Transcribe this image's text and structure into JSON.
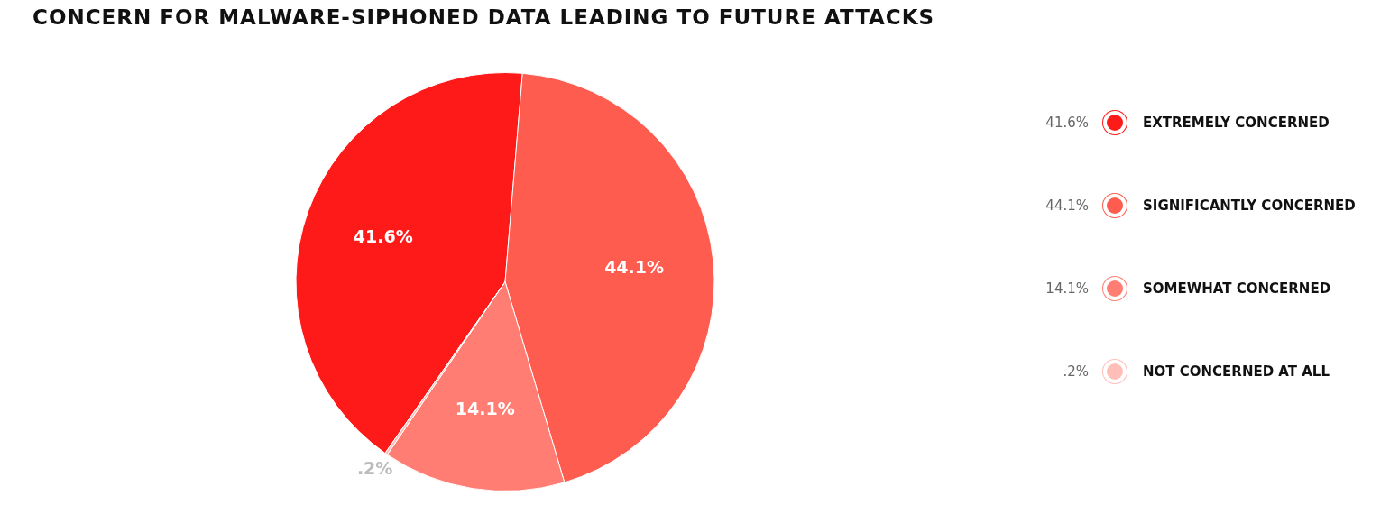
{
  "chart_data": {
    "type": "pie",
    "title": "CONCERN FOR MALWARE-SIPHONED DATA LEADING TO FUTURE ATTACKS",
    "categories": [
      "EXTREMELY CONCERNED",
      "SIGNIFICANTLY CONCERNED",
      "SOMEWHAT CONCERNED",
      "NOT CONCERNED AT ALL"
    ],
    "values": [
      41.6,
      44.1,
      14.1,
      0.2
    ],
    "value_labels": [
      "41.6%",
      "44.1%",
      "14.1%",
      ".2%"
    ],
    "colors": [
      "#ff1a1a",
      "#ff5c50",
      "#ff7d72",
      "#ffbfb8"
    ],
    "legend": "right"
  }
}
